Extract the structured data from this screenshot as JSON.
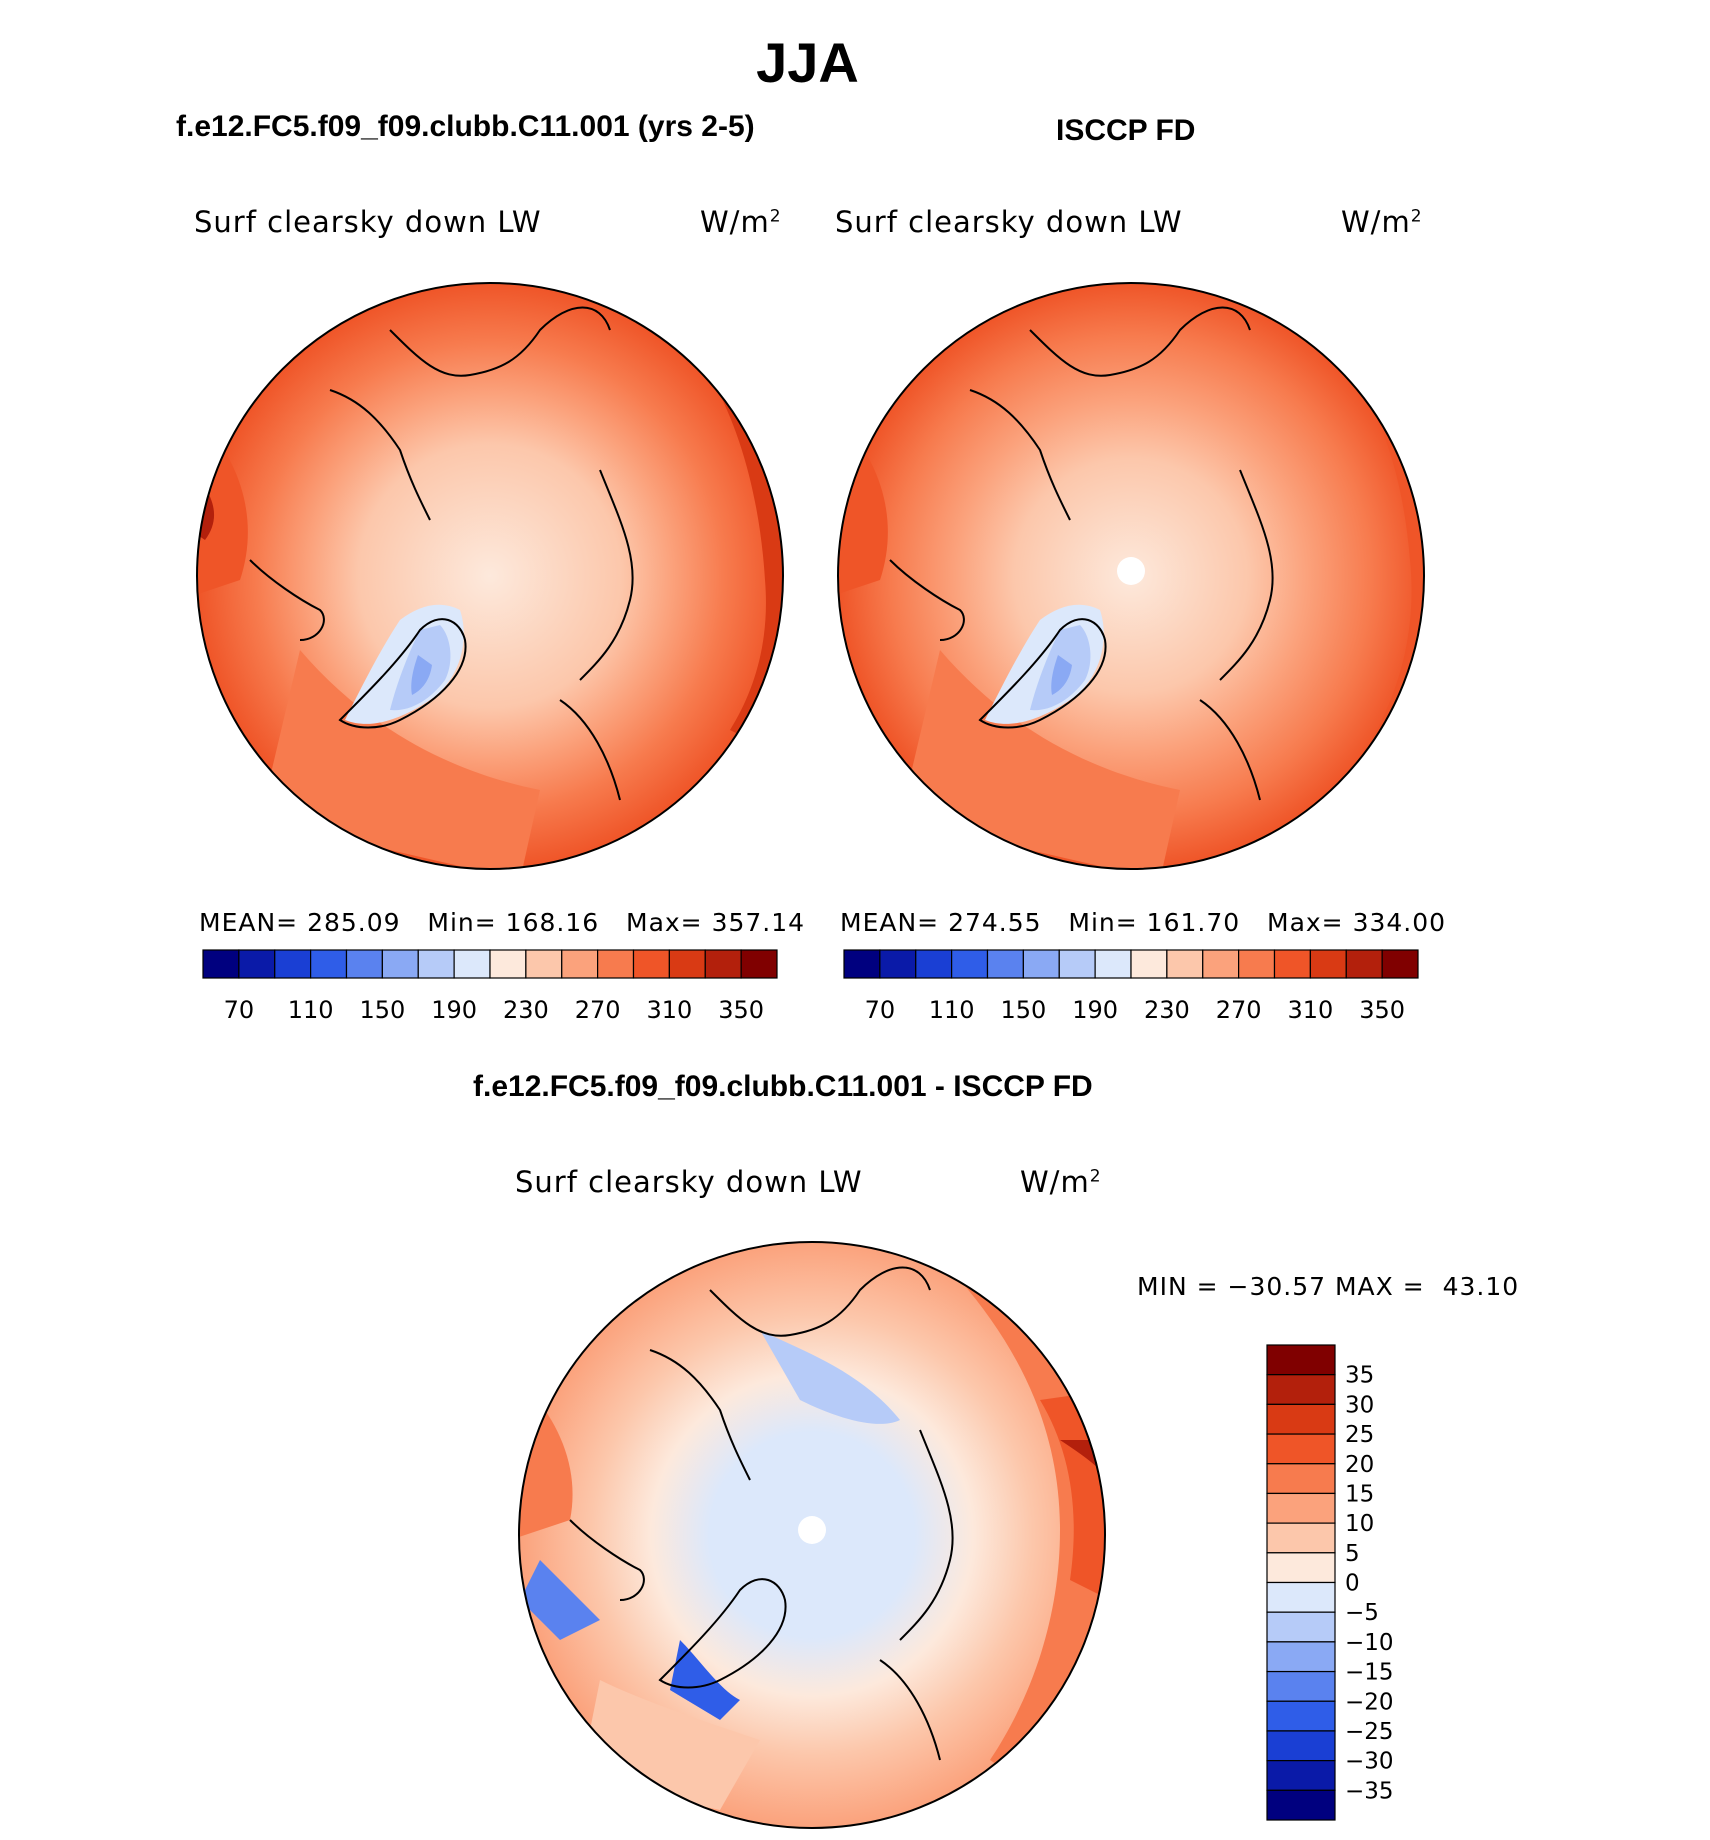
{
  "main_title": "JJA",
  "panels": {
    "left": {
      "title": "f.e12.FC5.f09_f09.clubb.C11.001 (yrs 2-5)",
      "variable": "Surf clearsky down LW",
      "units": "W/m",
      "units_sup": "2",
      "mean_label": "MEAN=",
      "mean": "285.09",
      "min_label": "Min=",
      "min": "168.16",
      "max_label": "Max=",
      "max": "357.14"
    },
    "right": {
      "title": "ISCCP FD",
      "variable": "Surf clearsky down LW",
      "units": "W/m",
      "units_sup": "2",
      "mean_label": "MEAN=",
      "mean": "274.55",
      "min_label": "Min=",
      "min": "161.70",
      "max_label": "Max=",
      "max": "334.00"
    },
    "diff": {
      "title": "f.e12.FC5.f09_f09.clubb.C11.001 - ISCCP FD",
      "variable": "Surf clearsky down LW",
      "units": "W/m",
      "units_sup": "2",
      "min_label": "MIN =",
      "min": "−30.57",
      "max_label": "MAX =",
      "max": "43.10"
    }
  },
  "colors": {
    "abs_scale": [
      "#00007f",
      "#0a1aa8",
      "#1a3fd4",
      "#2f5de8",
      "#5a82ef",
      "#8aa9f4",
      "#b6cbf8",
      "#dce8fb",
      "#fde9dc",
      "#fcc7ab",
      "#fba27c",
      "#f77b4e",
      "#ef5528",
      "#d93a14",
      "#b3200c",
      "#800000"
    ],
    "diff_scale": [
      "#00007f",
      "#0a1aa8",
      "#1a3fd4",
      "#2f5de8",
      "#5a82ef",
      "#8aa9f4",
      "#b6cbf8",
      "#dce8fb",
      "#fde9dc",
      "#fcc7ab",
      "#fba27c",
      "#f77b4e",
      "#ef5528",
      "#d93a14",
      "#b3200c",
      "#800000"
    ],
    "land_outline": "#000000"
  },
  "chart_data": [
    {
      "type": "heatmap",
      "title": "f.e12.FC5.f09_f09.clubb.C11.001 (yrs 2-5)",
      "projection": "north polar stereographic",
      "variable": "Surf clearsky down LW",
      "units": "W/m2",
      "stats": {
        "mean": 285.09,
        "min": 168.16,
        "max": 357.14
      },
      "colorbar": {
        "levels": [
          70,
          90,
          110,
          130,
          150,
          170,
          190,
          210,
          230,
          250,
          270,
          290,
          310,
          330,
          350
        ],
        "tick_labels": [
          "70",
          "110",
          "150",
          "190",
          "230",
          "270",
          "310",
          "350"
        ],
        "orientation": "horizontal"
      }
    },
    {
      "type": "heatmap",
      "title": "ISCCP FD",
      "projection": "north polar stereographic",
      "variable": "Surf clearsky down LW",
      "units": "W/m2",
      "stats": {
        "mean": 274.55,
        "min": 161.7,
        "max": 334.0
      },
      "colorbar": {
        "levels": [
          70,
          90,
          110,
          130,
          150,
          170,
          190,
          210,
          230,
          250,
          270,
          290,
          310,
          330,
          350
        ],
        "tick_labels": [
          "70",
          "110",
          "150",
          "190",
          "230",
          "270",
          "310",
          "350"
        ],
        "orientation": "horizontal"
      }
    },
    {
      "type": "heatmap",
      "title": "f.e12.FC5.f09_f09.clubb.C11.001 - ISCCP FD",
      "projection": "north polar stereographic",
      "variable": "Surf clearsky down LW",
      "units": "W/m2",
      "stats": {
        "min": -30.57,
        "max": 43.1
      },
      "colorbar": {
        "levels": [
          35,
          30,
          25,
          20,
          15,
          10,
          5,
          0,
          -5,
          -10,
          -15,
          -20,
          -25,
          -30,
          -35
        ],
        "tick_labels": [
          "35",
          "30",
          "25",
          "20",
          "15",
          "10",
          "5",
          "0",
          "−5",
          "−10",
          "−15",
          "−20",
          "−25",
          "−30",
          "−35"
        ],
        "orientation": "vertical"
      }
    }
  ]
}
